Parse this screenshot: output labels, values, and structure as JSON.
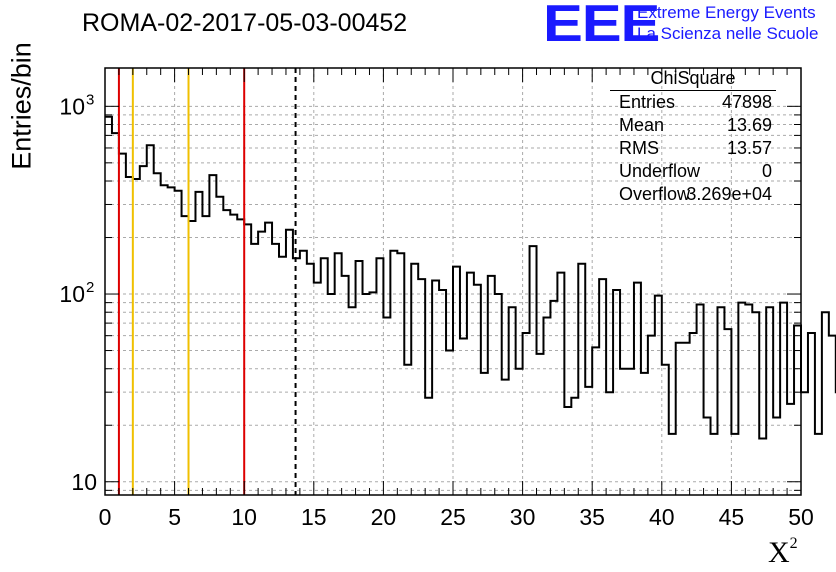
{
  "header": {
    "title": "ROMA-02-2017-05-03-00452",
    "logo": "EEE",
    "logo_line1": "Extreme Energy Events",
    "logo_line2": "La Scienza nelle Scuole"
  },
  "stats": {
    "title": "ChiSquare",
    "rows": [
      {
        "label": "Entries",
        "value": "47898"
      },
      {
        "label": "Mean",
        "value": "13.69"
      },
      {
        "label": "RMS",
        "value": "13.57"
      },
      {
        "label": "Underflow",
        "value": "0"
      },
      {
        "label": "Overflow",
        "value": "3.269e+04"
      }
    ]
  },
  "chart_data": {
    "type": "histogram",
    "title": "ROMA-02-2017-05-03-00452",
    "xlabel": "X",
    "xlabel_superscript": "2",
    "ylabel": "Entries/bin",
    "xlim": [
      0,
      50
    ],
    "ylim": [
      8.5,
      1600
    ],
    "y_scale": "log",
    "grid": true,
    "bin_width": 0.5,
    "x_ticks": [
      "0",
      "5",
      "10",
      "15",
      "20",
      "25",
      "30",
      "35",
      "40",
      "45",
      "50"
    ],
    "y_ticks": [
      {
        "value": 10,
        "label": "10",
        "sup": ""
      },
      {
        "value": 100,
        "label": "10",
        "sup": "2"
      },
      {
        "value": 1000,
        "label": "10",
        "sup": "3"
      }
    ],
    "colors": {
      "red": "#dd0000",
      "orange": "#f0c000",
      "hist": "#000000"
    },
    "vertical_lines": [
      {
        "x": 1,
        "color": "red",
        "style": "solid"
      },
      {
        "x": 2,
        "color": "orange",
        "style": "solid"
      },
      {
        "x": 6,
        "color": "orange",
        "style": "solid"
      },
      {
        "x": 10,
        "color": "red",
        "style": "solid"
      },
      {
        "x": 13.69,
        "color": "black",
        "style": "dashed"
      }
    ],
    "values": [
      880,
      720,
      560,
      420,
      410,
      480,
      620,
      440,
      380,
      370,
      355,
      260,
      245,
      350,
      260,
      430,
      330,
      280,
      265,
      250,
      235,
      185,
      215,
      240,
      185,
      158,
      220,
      155,
      170,
      145,
      115,
      155,
      100,
      165,
      125,
      85,
      150,
      100,
      102,
      155,
      75,
      170,
      165,
      42,
      145,
      120,
      28,
      118,
      105,
      50,
      140,
      58,
      130,
      112,
      38,
      125,
      100,
      35,
      85,
      40,
      62,
      180,
      48,
      75,
      92,
      130,
      25,
      28,
      145,
      32,
      52,
      120,
      30,
      105,
      40,
      40,
      115,
      38,
      60,
      98,
      42,
      18,
      55,
      55,
      62,
      88,
      22,
      18,
      85,
      65,
      18,
      90,
      88,
      80,
      17,
      85,
      22,
      90,
      26,
      68,
      30,
      62,
      18,
      80,
      60,
      30,
      20,
      72,
      85,
      30,
      55,
      65,
      80,
      90,
      45,
      30,
      78
    ]
  }
}
